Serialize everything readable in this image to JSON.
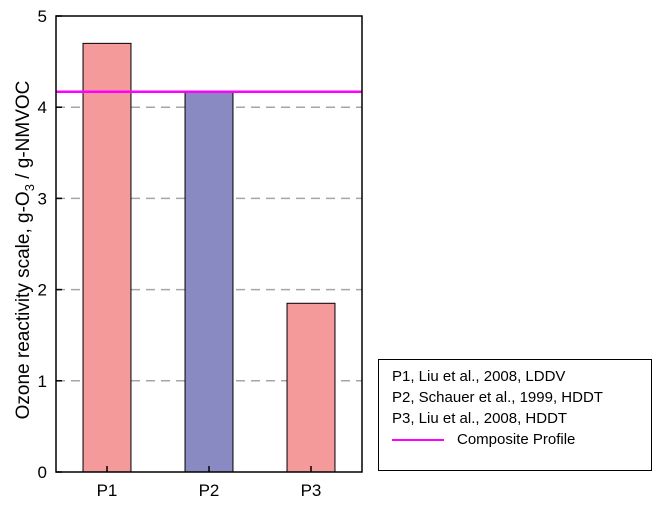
{
  "chart_data": {
    "type": "bar",
    "categories": [
      "P1",
      "P2",
      "P3"
    ],
    "values": [
      4.7,
      4.17,
      1.85
    ],
    "bar_colors": [
      "#f59a9a",
      "#8a8ac2",
      "#f59a9a"
    ],
    "ylabel_prefix": "Ozone reactivity scale, g-O",
    "ylabel_sub": "3",
    "ylabel_suffix": " / g-NMVOC",
    "ylim": [
      0,
      5
    ],
    "yticks": [
      "0",
      "1",
      "2",
      "3",
      "4",
      "5"
    ],
    "grid": "dashed horizontal",
    "reference_line": {
      "name": "Composite Profile",
      "value": 4.17,
      "color": "#ff00ff"
    },
    "legend": {
      "placement": "bottom-right, outside plot",
      "entries": [
        "P1, Liu et al., 2008, LDDV",
        "P2, Schauer et al., 1999, HDDT",
        "P3, Liu et al., 2008, HDDT"
      ],
      "line_entry": "Composite Profile"
    }
  }
}
